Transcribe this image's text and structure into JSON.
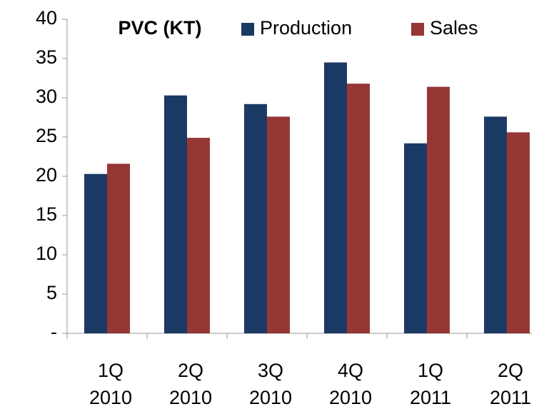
{
  "chart_data": {
    "type": "bar",
    "title": "PVC (KT)",
    "categories": [
      "1Q 2010",
      "2Q 2010",
      "3Q 2010",
      "4Q 2010",
      "1Q 2011",
      "2Q 2011"
    ],
    "series": [
      {
        "name": "Production",
        "color": "#1b3a63",
        "values": [
          20.3,
          30.3,
          29.2,
          34.5,
          24.2,
          27.6
        ]
      },
      {
        "name": "Sales",
        "color": "#963735",
        "values": [
          21.6,
          24.9,
          27.6,
          31.8,
          31.4,
          25.6
        ]
      }
    ],
    "ylim": [
      0,
      40
    ],
    "yticks": [
      {
        "value": 0,
        "label": "-"
      },
      5,
      10,
      15,
      20,
      25,
      30,
      35,
      40
    ],
    "grid": false,
    "legend": "top"
  }
}
